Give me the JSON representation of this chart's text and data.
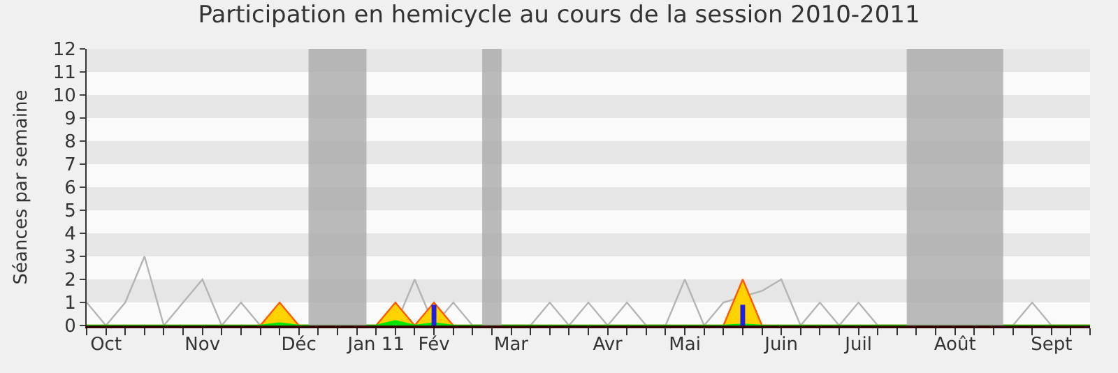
{
  "chart_data": {
    "type": "line",
    "title": "Participation en hemicycle au cours de la session 2010-2011",
    "ylabel": "Séances par semaine",
    "categories": [
      null,
      "Oct",
      null,
      null,
      null,
      null,
      "Nov",
      null,
      null,
      null,
      null,
      "Déc",
      null,
      null,
      null,
      "Jan 11",
      null,
      null,
      "Fév",
      null,
      null,
      null,
      "Mar",
      null,
      null,
      null,
      null,
      "Avr",
      null,
      null,
      null,
      "Mai",
      null,
      null,
      null,
      null,
      "Juin",
      null,
      null,
      null,
      "Juil",
      null,
      null,
      null,
      null,
      "Août",
      null,
      null,
      null,
      null,
      "Sept",
      null,
      null
    ],
    "series": [
      {
        "color": "#b4b4b4",
        "values": [
          1,
          0,
          1,
          3,
          0,
          1,
          2,
          0,
          1,
          0,
          0,
          0,
          0,
          0,
          0,
          0,
          0,
          2,
          0,
          1,
          0,
          0,
          0,
          0,
          1,
          0,
          1,
          0,
          1,
          0,
          0,
          2,
          0,
          1,
          null,
          1.5,
          2,
          0,
          1,
          0,
          1,
          0,
          0,
          0,
          0,
          0,
          0,
          0,
          0,
          1,
          0,
          0,
          0
        ]
      },
      {
        "type": "area",
        "color": "#ffd200",
        "values": [
          0,
          0,
          0,
          0,
          0,
          0,
          0,
          0,
          0,
          0,
          1,
          0,
          0,
          0,
          0,
          0,
          1,
          0,
          1,
          0,
          0,
          0,
          0,
          0,
          0,
          0,
          0,
          0,
          0,
          0,
          0,
          0,
          0,
          0,
          2,
          0,
          0,
          0,
          0,
          0,
          0,
          0,
          0,
          0,
          0,
          0,
          0,
          0,
          0,
          0,
          0,
          0,
          0
        ]
      },
      {
        "type": "area",
        "color": "#00e600",
        "values": [
          0,
          0,
          0,
          0,
          0,
          0,
          0,
          0,
          0,
          0,
          0.1,
          0,
          0,
          0,
          0,
          0,
          0.2,
          0,
          0.1,
          0,
          0,
          0,
          0,
          0,
          0,
          0,
          0,
          0,
          0,
          0,
          0,
          0,
          0,
          0,
          0.05,
          0,
          0,
          0,
          0,
          0,
          0,
          0,
          0,
          0,
          0,
          0,
          0,
          0,
          0,
          0,
          0,
          0,
          0
        ]
      },
      {
        "type": "bar",
        "color": "#2020e0",
        "values": [
          null,
          null,
          null,
          null,
          null,
          null,
          null,
          null,
          null,
          null,
          null,
          null,
          null,
          null,
          null,
          null,
          null,
          null,
          0.9,
          null,
          null,
          null,
          null,
          null,
          null,
          null,
          null,
          null,
          null,
          null,
          null,
          null,
          null,
          null,
          0.9,
          null,
          null,
          null,
          null,
          null,
          null,
          null,
          null,
          null,
          null,
          null,
          null,
          null,
          null,
          null,
          null,
          null,
          null
        ]
      }
    ],
    "ylim": [
      0,
      12
    ],
    "yticks": [
      0,
      1,
      2,
      3,
      4,
      5,
      6,
      7,
      8,
      9,
      10,
      11,
      12
    ]
  }
}
